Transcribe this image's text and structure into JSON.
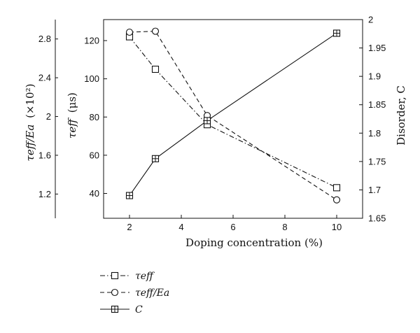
{
  "chart_data": {
    "type": "line",
    "x": [
      2,
      3,
      5,
      10
    ],
    "xlabel": "Doping concentration (%)",
    "xlim": [
      1,
      11
    ],
    "xticks": [
      "2",
      "4",
      "6",
      "8",
      "10"
    ],
    "y_left_outer": {
      "label": "τ_eff/E_a (×10^2)",
      "label_main": "τeff/Ea",
      "label_suffix": "(×10²)",
      "ticks": [
        "1.2",
        "1.6",
        "2",
        "2.4",
        "2.8"
      ],
      "lim": [
        0.95,
        3.0
      ]
    },
    "y_left_inner": {
      "label": "τ_eff (μs)",
      "label_main": "τeff",
      "label_suffix": "(μs)",
      "ticks": [
        "40",
        "60",
        "80",
        "100",
        "120"
      ],
      "lim": [
        27,
        131
      ]
    },
    "y_right": {
      "label": "Disorder, C",
      "ticks": [
        "1.65",
        "1.7",
        "1.75",
        "1.8",
        "1.85",
        "1.9",
        "1.95",
        "2"
      ],
      "lim": [
        1.65,
        2.0
      ]
    },
    "series": [
      {
        "name": "τeff",
        "axis": "y_left_inner",
        "values": [
          122,
          105,
          76,
          43
        ],
        "marker": "square",
        "line": "dash-dot"
      },
      {
        "name": "τeff/Ea",
        "axis": "y_left_outer",
        "values": [
          2.87,
          2.88,
          2.01,
          1.14
        ],
        "marker": "circle",
        "line": "dashed"
      },
      {
        "name": "C",
        "axis": "y_right",
        "values": [
          1.69,
          1.755,
          1.822,
          1.976
        ],
        "marker": "boxplus",
        "line": "solid"
      }
    ],
    "legend": {
      "placement": "below",
      "items": [
        "τeff",
        "τeff/Ea",
        "C"
      ]
    },
    "grid": false
  }
}
